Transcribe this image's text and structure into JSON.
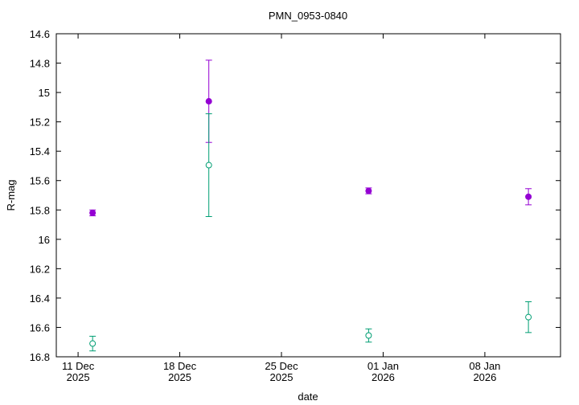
{
  "chart_data": {
    "type": "errorbar",
    "title": "PMN_0953-0840",
    "xlabel": "date",
    "ylabel": "R-mag",
    "xlim": [
      "2025-12-09T12:00",
      "2026-01-13T05:00"
    ],
    "xticks": [
      {
        "value": "2025-12-11",
        "label": "11 Dec 2025"
      },
      {
        "value": "2025-12-18",
        "label": "18 Dec 2025"
      },
      {
        "value": "2025-12-25",
        "label": "25 Dec 2025"
      },
      {
        "value": "2026-01-01",
        "label": "01 Jan 2026"
      },
      {
        "value": "2026-01-08",
        "label": "08 Jan 2026"
      }
    ],
    "ylim": [
      14.6,
      16.8
    ],
    "y_reversed": true,
    "yticks": [
      14.6,
      14.8,
      15,
      15.2,
      15.4,
      15.6,
      15.8,
      16,
      16.2,
      16.4,
      16.6,
      16.8
    ],
    "x": [
      "2025-12-12",
      "2025-12-20",
      "2025-12-31",
      "2026-01-11"
    ],
    "series": [
      {
        "color": "#9400d3",
        "marker": "filled-circle",
        "values": [
          15.82,
          15.06,
          15.67,
          15.71
        ],
        "errors": [
          0.02,
          0.28,
          0.02,
          0.055
        ]
      },
      {
        "color": "#009e73",
        "marker": "open-circle",
        "values": [
          16.71,
          15.495,
          16.655,
          16.53
        ],
        "errors": [
          0.05,
          0.35,
          0.045,
          0.105
        ]
      }
    ]
  }
}
